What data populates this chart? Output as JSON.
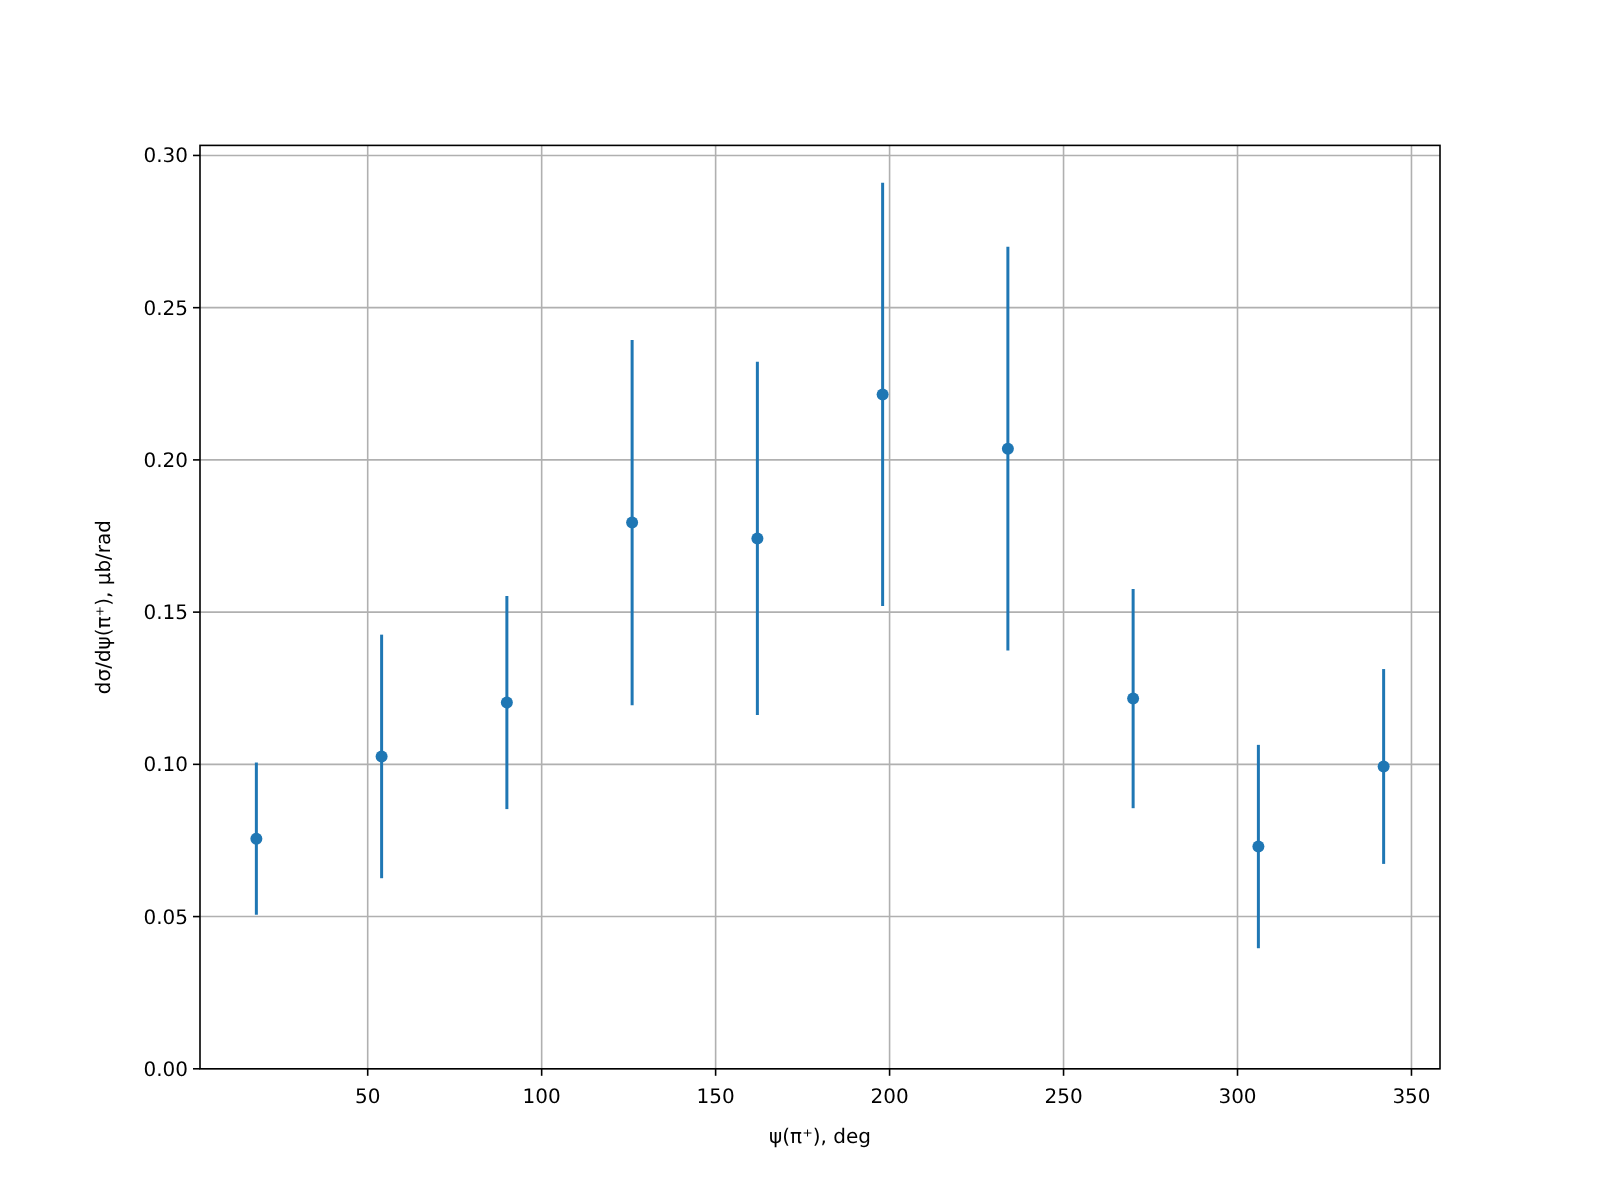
{
  "chart_data": {
    "type": "scatter",
    "xlabel": "ψ(π⁺), deg",
    "ylabel": "dσ/dψ(π⁺), μb/rad",
    "x": [
      18,
      54,
      90,
      126,
      162,
      198,
      234,
      270,
      306,
      342
    ],
    "series": [
      {
        "color": "#1f77b4",
        "values": [
          0.0756,
          0.1026,
          0.1203,
          0.1794,
          0.1742,
          0.2215,
          0.2037,
          0.1216,
          0.073,
          0.0993
        ],
        "errors": [
          0.025,
          0.04,
          0.035,
          0.06,
          0.058,
          0.0695,
          0.0663,
          0.036,
          0.0334,
          0.032
        ]
      }
    ],
    "xlim": [
      1.8,
      358.2
    ],
    "ylim": [
      0,
      0.3033
    ],
    "xticks": [
      50,
      100,
      150,
      200,
      250,
      300,
      350
    ],
    "yticks": [
      {
        "value": 0,
        "label": "0.00"
      },
      {
        "value": 0.05,
        "label": "0.05"
      },
      {
        "value": 0.1,
        "label": "0.10"
      },
      {
        "value": 0.15,
        "label": "0.15"
      },
      {
        "value": 0.2,
        "label": "0.20"
      },
      {
        "value": 0.25,
        "label": "0.25"
      },
      {
        "value": 0.3,
        "label": "0.30"
      }
    ],
    "grid": true,
    "marker": "circle"
  }
}
